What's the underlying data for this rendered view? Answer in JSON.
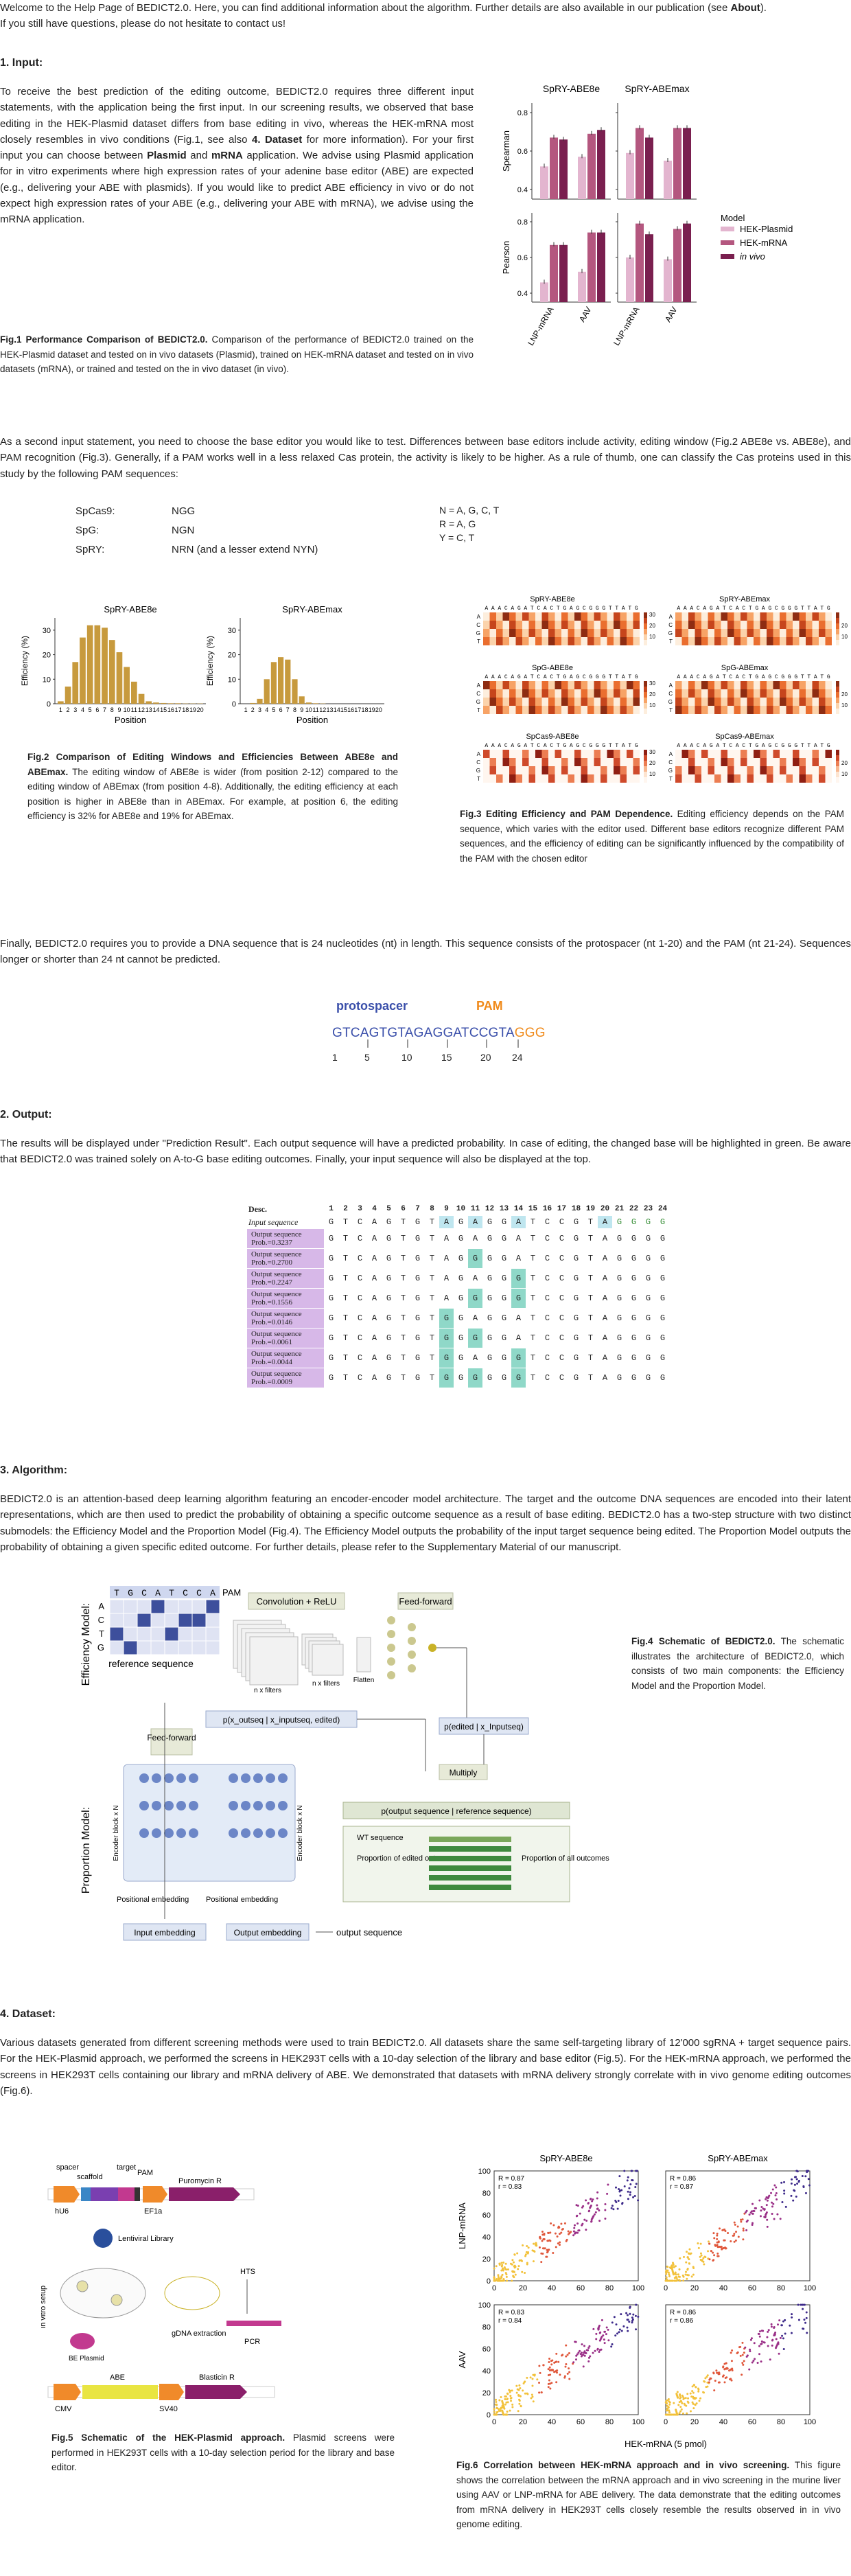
{
  "intro": {
    "line1_a": "Welcome to the Help Page of BEDICT2.0. Here, you can find additional information about the algorithm. Further details are also available in our publication (see ",
    "line1_link": "About",
    "line1_b": ").",
    "line2": "If you still have questions, please do not hesitate to contact us!"
  },
  "sections": {
    "input": "1. Input:",
    "output": "2. Output:",
    "algorithm": "3. Algorithm:",
    "dataset": "4. Dataset:"
  },
  "input": {
    "p1_a": "To receive the best prediction of the editing outcome, BEDICT2.0 requires three different input statements, with the application being the first input. In our screening results, we observed that base editing in the HEK-Plasmid dataset differs from base editing in vivo, whereas the HEK-mRNA most closely resembles in vivo conditions (Fig.1, see also ",
    "p1_b": "4. Dataset",
    "p1_c": " for more information). For your first input you can choose between ",
    "p1_d": "Plasmid",
    "p1_e": " and ",
    "p1_f": "mRNA",
    "p1_g": " application. We advise using Plasmid application for in vitro experiments where high expression rates of your adenine base editor (ABE) are expected (e.g., delivering your ABE with plasmids). If you would like to predict ABE efficiency in vivo or do not expect high expression rates of your ABE (e.g., delivering your ABE with mRNA), we advise using the mRNA application.",
    "fig1_title": "Fig.1 Performance Comparison of BEDICT2.0.",
    "fig1_text": " Comparison of the performance of BEDICT2.0 trained on the HEK-Plasmid dataset and tested on in vivo datasets (Plasmid), trained on HEK-mRNA dataset and tested on in vivo datasets (mRNA), or trained and tested on the in vivo dataset (in vivo).",
    "p2": "As a second input statement, you need to choose the base editor you would like to test. Differences between base editors include activity, editing window (Fig.2 ABE8e vs. ABE8e), and PAM recognition (Fig.3). Generally, if a PAM works well in a less relaxed Cas protein, the activity is likely to be higher. As a rule of thumb, one can classify the Cas proteins used in this study by the following PAM sequences:",
    "pam_table": [
      {
        "name": "SpCas9:",
        "seq": "NGG"
      },
      {
        "name": "SpG:",
        "seq": "NGN"
      },
      {
        "name": "SpRY:",
        "seq": "NRN (and a lesser extend NYN)"
      }
    ],
    "codes": [
      "N = A, G, C, T",
      "R = A, G",
      "Y = C, T"
    ],
    "fig2_title": "Fig.2 Comparison of Editing Windows and Efficiencies Between ABE8e and ABEmax.",
    "fig2_text": " The editing window of ABE8e is wider (from position 2-12) compared to the editing window of ABEmax (from position 4-8). Additionally, the editing efficiency at each position is higher in ABE8e than in ABEmax. For example, at position 6, the editing efficiency is 32% for ABE8e and 19% for ABEmax.",
    "fig3_title": "Fig.3 Editing Efficiency and PAM Dependence.",
    "fig3_text": " Editing efficiency depends on the PAM sequence, which varies with the editor used. Different base editors recognize different PAM sequences, and the efficiency of editing can be significantly influenced by the compatibility of the PAM with the chosen editor",
    "p3": "Finally, BEDICT2.0 requires you to provide a DNA sequence that is 24 nucleotides (nt) in length. This sequence consists of the protospacer (nt 1-20) and the PAM (nt 21-24). Sequences longer or shorter than 24 nt cannot be predicted.",
    "seq_proto_label": "protospacer",
    "seq_pam_label": "PAM",
    "seq_proto": "GTCAGTGTAGAGGATCCGT",
    "seq_proto_last": "A",
    "seq_pam": "GGG",
    "seq_ticks": [
      "1",
      "5",
      "10",
      "15",
      "20",
      "24"
    ]
  },
  "output": {
    "p1": "The results will be displayed under \"Prediction Result\". Each output sequence will have a predicted probability. In case of editing, the changed base will be highlighted in green. Be aware that BEDICT2.0 was trained solely on A-to-G base editing outcomes. Finally, your input sequence will also be displayed at the top.",
    "desc": "Desc.",
    "positions": [
      "1",
      "2",
      "3",
      "4",
      "5",
      "6",
      "7",
      "8",
      "9",
      "10",
      "11",
      "12",
      "13",
      "14",
      "15",
      "16",
      "17",
      "18",
      "19",
      "20",
      "21",
      "22",
      "23",
      "24"
    ],
    "input_label": "Input sequence",
    "input_seq": [
      "G",
      "T",
      "C",
      "A",
      "G",
      "T",
      "G",
      "T",
      "A",
      "G",
      "A",
      "G",
      "G",
      "A",
      "T",
      "C",
      "C",
      "G",
      "T",
      "A",
      "G",
      "G",
      "G",
      "G"
    ],
    "rows": [
      {
        "label": "Output sequence",
        "prob": "Prob.=0.3237",
        "seq": [
          "G",
          "T",
          "C",
          "A",
          "G",
          "T",
          "G",
          "T",
          "A",
          "G",
          "A",
          "G",
          "G",
          "A",
          "T",
          "C",
          "C",
          "G",
          "T",
          "A",
          "G",
          "G",
          "G",
          "G"
        ],
        "hl": []
      },
      {
        "label": "Output sequence",
        "prob": "Prob.=0.2700",
        "seq": [
          "G",
          "T",
          "C",
          "A",
          "G",
          "T",
          "G",
          "T",
          "A",
          "G",
          "G",
          "G",
          "G",
          "A",
          "T",
          "C",
          "C",
          "G",
          "T",
          "A",
          "G",
          "G",
          "G",
          "G"
        ],
        "hl": [
          10
        ]
      },
      {
        "label": "Output sequence",
        "prob": "Prob.=0.2247",
        "seq": [
          "G",
          "T",
          "C",
          "A",
          "G",
          "T",
          "G",
          "T",
          "A",
          "G",
          "A",
          "G",
          "G",
          "G",
          "T",
          "C",
          "C",
          "G",
          "T",
          "A",
          "G",
          "G",
          "G",
          "G"
        ],
        "hl": [
          13
        ]
      },
      {
        "label": "Output sequence",
        "prob": "Prob.=0.1556",
        "seq": [
          "G",
          "T",
          "C",
          "A",
          "G",
          "T",
          "G",
          "T",
          "A",
          "G",
          "G",
          "G",
          "G",
          "G",
          "T",
          "C",
          "C",
          "G",
          "T",
          "A",
          "G",
          "G",
          "G",
          "G"
        ],
        "hl": [
          10,
          13
        ]
      },
      {
        "label": "Output sequence",
        "prob": "Prob.=0.0146",
        "seq": [
          "G",
          "T",
          "C",
          "A",
          "G",
          "T",
          "G",
          "T",
          "G",
          "G",
          "A",
          "G",
          "G",
          "A",
          "T",
          "C",
          "C",
          "G",
          "T",
          "A",
          "G",
          "G",
          "G",
          "G"
        ],
        "hl": [
          8
        ]
      },
      {
        "label": "Output sequence",
        "prob": "Prob.=0.0061",
        "seq": [
          "G",
          "T",
          "C",
          "A",
          "G",
          "T",
          "G",
          "T",
          "G",
          "G",
          "G",
          "G",
          "G",
          "A",
          "T",
          "C",
          "C",
          "G",
          "T",
          "A",
          "G",
          "G",
          "G",
          "G"
        ],
        "hl": [
          8,
          10
        ]
      },
      {
        "label": "Output sequence",
        "prob": "Prob.=0.0044",
        "seq": [
          "G",
          "T",
          "C",
          "A",
          "G",
          "T",
          "G",
          "T",
          "G",
          "G",
          "A",
          "G",
          "G",
          "G",
          "T",
          "C",
          "C",
          "G",
          "T",
          "A",
          "G",
          "G",
          "G",
          "G"
        ],
        "hl": [
          8,
          13
        ]
      },
      {
        "label": "Output sequence",
        "prob": "Prob.=0.0009",
        "seq": [
          "G",
          "T",
          "C",
          "A",
          "G",
          "T",
          "G",
          "T",
          "G",
          "G",
          "G",
          "G",
          "G",
          "G",
          "T",
          "C",
          "C",
          "G",
          "T",
          "A",
          "G",
          "G",
          "G",
          "G"
        ],
        "hl": [
          8,
          10,
          13
        ]
      }
    ]
  },
  "algorithm": {
    "p1": "BEDICT2.0 is an attention-based deep learning algorithm featuring an encoder-encoder model architecture. The target and  the outcome DNA sequences are encoded into their latent representations, which are then used to predict the probability of obtaining a specific outcome sequence as a result of base editing. BEDICT2.0 has a two-step structure with two distinct submodels: the Efficiency Model and the Proportion Model (Fig.4). The Efficiency Model outputs the probability of the input target sequence being edited. The Proportion Model outputs the probability of obtaining a given specific edited outcome. For further details, please refer to the Supplementary Material of our manuscript.",
    "fig4_title": "Fig.4 Schematic of BEDICT2.0.",
    "fig4_text": " The schematic illustrates the architecture of BEDICT2.0, which consists of two main components: the Efficiency Model and the Proportion Model.",
    "labels": {
      "eff_model": "Efficiency Model:",
      "prop_model": "Proportion Model:",
      "conv": "Convolution + ReLU",
      "ff": "Feed-forward",
      "ref_seq": "reference sequence",
      "nfilters1": "n x filters",
      "nfilters2": "n x filters",
      "flatten": "Flatten",
      "pam": "PAM",
      "grid_seq": [
        "T",
        "G",
        "C",
        "A",
        "T",
        "C",
        "C",
        "A"
      ],
      "grid_rows": [
        "A",
        "C",
        "T",
        "G"
      ],
      "ff2": "Feed-forward",
      "p_out": "p(x_outseq | x_inputseq, edited)",
      "p_edited": "p(edited | x_Inputseq)",
      "multiply": "Multiply",
      "p_final": "p(output sequence | reference sequence)",
      "wt": "WT sequence",
      "prop_edited": "Proportion of edited outcomes",
      "prop_all": "Proportion of all outcomes",
      "enc1": "Encoder block x N",
      "enc2": "Encoder block x N",
      "pos1": "Positional embedding",
      "pos2": "Positional embedding",
      "in_emb": "Input embedding",
      "out_emb": "Output embedding",
      "out_seq": "output sequence"
    }
  },
  "dataset": {
    "p1": "Various datasets generated from different screening methods were used to train BEDICT2.0. All datasets share the same self-targeting library of 12'000 sgRNA + target sequence pairs. For the HEK-Plasmid approach, we performed the screens in HEK293T cells with a 10-day selection of the library and base editor (Fig.5). For the HEK-mRNA approach, we performed the screens in HEK293T cells containing our library and mRNA delivery of ABE. We demonstrated that datasets with mRNA delivery strongly correlate with in vivo genome editing outcomes (Fig.6).",
    "fig5_title": "Fig.5 Schematic of the HEK-Plasmid approach.",
    "fig5_text": " Plasmid screens were performed in HEK293T cells with a 10-day selection period for the library and base editor.",
    "fig6_title": "Fig.6 Correlation between HEK-mRNA approach and in vivo screening.",
    "fig6_text": " This figure shows the correlation between the mRNA approach and in vivo screening in the murine liver using AAV or LNP-mRNA for ABE delivery. The data demonstrate that the editing outcomes from mRNA delivery in HEK293T cells closely resemble the results observed in in vivo genome editing.",
    "fig5_labels": {
      "spacer": "spacer",
      "scaffold": "scaffold",
      "target": "target",
      "pam": "PAM",
      "hu6": "hU6",
      "ef1a": "EF1a",
      "puro": "Puromycin R",
      "lenti": "Lentiviral Library",
      "invitro": "in vitro setup",
      "gdna": "gDNA extraction",
      "hts": "HTS",
      "pcr": "PCR",
      "be_plasmid": "BE Plasmid",
      "abe": "ABE",
      "blast": "Blasticin R",
      "cmv": "CMV",
      "sv40": "SV40"
    },
    "fig6_labels": {
      "col1": "SpRY-ABE8e",
      "col2": "SpRY-ABEmax",
      "row1": "LNP-mRNA",
      "row2": "AAV",
      "xlabel": "HEK-mRNA (5 pmol)",
      "stats": [
        "R = 0.87\nr = 0.83",
        "R = 0.86\nr = 0.87",
        "R = 0.83\nr = 0.84",
        "R = 0.86\nr = 0.86"
      ],
      "xticks": [
        "0",
        "20",
        "40",
        "60",
        "80",
        "100"
      ],
      "yticks": [
        "0",
        "20",
        "40",
        "60",
        "80",
        "100"
      ]
    }
  },
  "chart_data": [
    {
      "type": "bar",
      "title": "SpRY-ABE8e",
      "subplots": [
        "Spearman",
        "Pearson"
      ],
      "categories": [
        "LNP-mRNA",
        "AAV"
      ],
      "legend_title": "Model",
      "series": [
        {
          "name": "HEK-Plasmid",
          "color": "#e3b5cf"
        },
        {
          "name": "HEK-mRNA",
          "color": "#b4577f"
        },
        {
          "name": "in vivo",
          "color": "#7a1f4f"
        }
      ],
      "spearman": {
        "LNP-mRNA": [
          0.52,
          0.67,
          0.66
        ],
        "AAV": [
          0.57,
          0.69,
          0.71
        ]
      },
      "pearson": {
        "LNP-mRNA": [
          0.46,
          0.67,
          0.67
        ],
        "AAV": [
          0.52,
          0.74,
          0.74
        ]
      },
      "yticks": [
        "0.4",
        "0.6",
        "0.8"
      ],
      "ylim": [
        0.35,
        0.85
      ]
    },
    {
      "type": "bar",
      "title": "SpRY-ABEmax",
      "subplots": [
        "Spearman",
        "Pearson"
      ],
      "categories": [
        "LNP-mRNA",
        "AAV"
      ],
      "spearman": {
        "LNP-mRNA": [
          0.59,
          0.72,
          0.67
        ],
        "AAV": [
          0.55,
          0.72,
          0.72
        ]
      },
      "pearson": {
        "LNP-mRNA": [
          0.6,
          0.79,
          0.73
        ],
        "AAV": [
          0.59,
          0.76,
          0.79
        ]
      },
      "yticks": [
        "0.4",
        "0.6",
        "0.8"
      ],
      "ylim": [
        0.35,
        0.85
      ]
    },
    {
      "type": "bar",
      "title": "SpRY-ABE8e",
      "xlabel": "Position",
      "ylabel": "Efficiency (%)",
      "categories": [
        "1",
        "2",
        "3",
        "4",
        "5",
        "6",
        "7",
        "8",
        "9",
        "10",
        "11",
        "12",
        "13",
        "14",
        "15",
        "16",
        "17",
        "18",
        "19",
        "20"
      ],
      "values": [
        1,
        7,
        17,
        27,
        32,
        32,
        31,
        26,
        21,
        15,
        9,
        4,
        1,
        0.5,
        0.3,
        0.2,
        0.2,
        0.1,
        0.1,
        0.1
      ],
      "yticks": [
        "0",
        "10",
        "20",
        "30"
      ],
      "ylim": [
        0,
        35
      ]
    },
    {
      "type": "bar",
      "title": "SpRY-ABEmax",
      "xlabel": "Position",
      "ylabel": "Efficiency (%)",
      "categories": [
        "1",
        "2",
        "3",
        "4",
        "5",
        "6",
        "7",
        "8",
        "9",
        "10",
        "11",
        "12",
        "13",
        "14",
        "15",
        "16",
        "17",
        "18",
        "19",
        "20"
      ],
      "values": [
        0,
        0.3,
        2,
        10,
        17,
        19,
        18,
        10,
        3,
        0.5,
        0.2,
        0.1,
        0,
        0,
        0,
        0,
        0,
        0,
        0,
        0
      ],
      "yticks": [
        "0",
        "10",
        "20",
        "30"
      ],
      "ylim": [
        0,
        35
      ]
    },
    {
      "type": "heatmap",
      "panels": [
        "SpRY-ABE8e",
        "SpRY-ABEmax",
        "SpG-ABE8e",
        "SpG-ABEmax",
        "SpCas9-ABE8e",
        "SpCas9-ABEmax"
      ],
      "rows": [
        "A",
        "C",
        "G",
        "T"
      ],
      "col_labels": "AAACAGATCACTGAGCGGGTTATG",
      "colorbar_ticks": [
        "10",
        "20",
        "30"
      ]
    },
    {
      "type": "scatter",
      "panels": [
        "SpRY-ABE8e / LNP-mRNA",
        "SpRY-ABEmax / LNP-mRNA",
        "SpRY-ABE8e / AAV",
        "SpRY-ABEmax / AAV"
      ],
      "xlabel": "HEK-mRNA (5 pmol)",
      "xlim": [
        0,
        100
      ],
      "ylim": [
        0,
        100
      ]
    }
  ]
}
